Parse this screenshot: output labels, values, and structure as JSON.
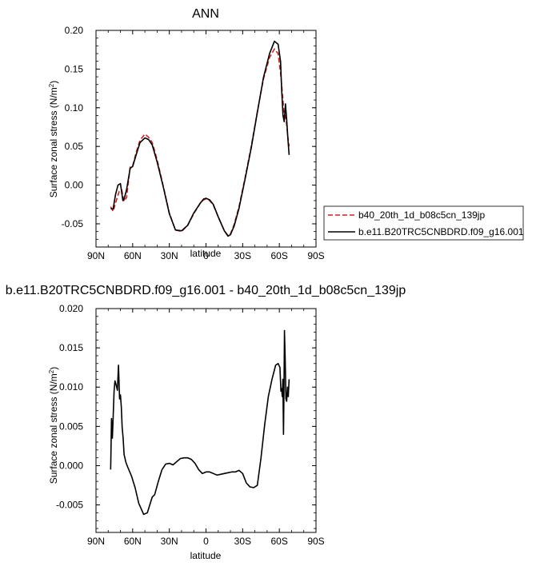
{
  "chart_data": [
    {
      "type": "line",
      "title": "ANN",
      "xlabel": "latitude",
      "ylabel": "Surface zonal stress (N/m²)",
      "ylabel_main": "Surface zonal stress (N/m",
      "ylabel_sup": "2",
      "ylabel_tail": ")",
      "xlim": [
        90,
        -90
      ],
      "ylim": [
        -0.08,
        0.2
      ],
      "x_ticks": [
        {
          "v": 90,
          "label": "90N"
        },
        {
          "v": 60,
          "label": "60N"
        },
        {
          "v": 30,
          "label": "30N"
        },
        {
          "v": 0,
          "label": "0"
        },
        {
          "v": -30,
          "label": "30S"
        },
        {
          "v": -60,
          "label": "60S"
        },
        {
          "v": -90,
          "label": "90S"
        }
      ],
      "y_ticks": [
        {
          "v": 0.2,
          "label": "0.20"
        },
        {
          "v": 0.15,
          "label": "0.15"
        },
        {
          "v": 0.1,
          "label": "0.10"
        },
        {
          "v": 0.05,
          "label": "0.05"
        },
        {
          "v": 0.0,
          "label": "0.00"
        },
        {
          "v": -0.05,
          "label": "-0.05"
        }
      ],
      "legend_position": "right",
      "series": [
        {
          "name": "b40_20th_1d_b08c5cn_139jp",
          "color": "#d42020",
          "dash": "dashed",
          "x": [
            78,
            76,
            73,
            71,
            69,
            67,
            65,
            62,
            60,
            57,
            54,
            50,
            47,
            44,
            40,
            35,
            30,
            25,
            20,
            15,
            10,
            5,
            2,
            0,
            -3,
            -6,
            -10,
            -15,
            -18,
            -20,
            -23,
            -27,
            -32,
            -37,
            -42,
            -47,
            -52,
            -56,
            -59,
            -61,
            -63,
            -64,
            -65,
            -66,
            -67,
            -68
          ],
          "y": [
            -0.028,
            -0.034,
            -0.018,
            -0.008,
            -0.006,
            -0.021,
            -0.016,
            0.024,
            0.025,
            0.043,
            0.058,
            0.066,
            0.062,
            0.055,
            0.033,
            -0.001,
            -0.036,
            -0.058,
            -0.06,
            -0.052,
            -0.037,
            -0.024,
            -0.019,
            -0.018,
            -0.02,
            -0.026,
            -0.041,
            -0.059,
            -0.065,
            -0.063,
            -0.051,
            -0.028,
            0.01,
            0.05,
            0.095,
            0.137,
            0.165,
            0.176,
            0.17,
            0.145,
            0.11,
            0.085,
            0.09,
            0.078,
            0.062,
            0.05
          ]
        },
        {
          "name": "b.e11.B20TRC5CNBDRD.f09_g16.001",
          "color": "#000000",
          "dash": "solid",
          "x": [
            78,
            76,
            74,
            72,
            70,
            68,
            67,
            65,
            62,
            60,
            57,
            54,
            50,
            47,
            44,
            40,
            35,
            30,
            25,
            20,
            15,
            10,
            5,
            2,
            0,
            -3,
            -6,
            -10,
            -15,
            -18,
            -20,
            -23,
            -27,
            -32,
            -37,
            -42,
            -47,
            -52,
            -56,
            -59,
            -61,
            -62,
            -63,
            -64,
            -65,
            -66,
            -67,
            -68
          ],
          "y": [
            -0.03,
            -0.031,
            -0.012,
            0.0,
            0.002,
            -0.02,
            -0.018,
            -0.006,
            0.022,
            0.024,
            0.04,
            0.055,
            0.061,
            0.059,
            0.052,
            0.03,
            -0.002,
            -0.037,
            -0.058,
            -0.059,
            -0.052,
            -0.036,
            -0.024,
            -0.018,
            -0.017,
            -0.019,
            -0.025,
            -0.041,
            -0.059,
            -0.066,
            -0.064,
            -0.053,
            -0.03,
            0.008,
            0.048,
            0.094,
            0.139,
            0.17,
            0.186,
            0.182,
            0.16,
            0.12,
            0.09,
            0.082,
            0.105,
            0.085,
            0.06,
            0.039
          ]
        }
      ]
    },
    {
      "type": "line",
      "title": "b.e11.B20TRC5CNBDRD.f09_g16.001 - b40_20th_1d_b08c5cn_139jp",
      "xlabel": "latitude",
      "ylabel": "Surface zonal stress (N/m²)",
      "ylabel_main": "Surface zonal stress (N/m",
      "ylabel_sup": "2",
      "ylabel_tail": ")",
      "xlim": [
        90,
        -90
      ],
      "ylim": [
        -0.0085,
        0.02
      ],
      "x_ticks": [
        {
          "v": 90,
          "label": "90N"
        },
        {
          "v": 60,
          "label": "60N"
        },
        {
          "v": 30,
          "label": "30N"
        },
        {
          "v": 0,
          "label": "0"
        },
        {
          "v": -30,
          "label": "30S"
        },
        {
          "v": -60,
          "label": "60S"
        },
        {
          "v": -90,
          "label": "90S"
        }
      ],
      "y_ticks": [
        {
          "v": 0.02,
          "label": "0.020"
        },
        {
          "v": 0.015,
          "label": "0.015"
        },
        {
          "v": 0.01,
          "label": "0.010"
        },
        {
          "v": 0.005,
          "label": "0.005"
        },
        {
          "v": 0.0,
          "label": "0.000"
        },
        {
          "v": -0.005,
          "label": "-0.005"
        }
      ],
      "series": [
        {
          "name": "",
          "color": "#000000",
          "dash": "solid",
          "x": [
            78,
            77.3,
            76.6,
            76,
            75.2,
            74.5,
            73.4,
            72.5,
            71.6,
            70.7,
            70,
            69.3,
            68.6,
            67.8,
            67,
            65.5,
            64,
            61,
            58,
            55,
            51,
            48,
            46,
            44,
            42,
            39,
            36,
            33,
            30,
            27,
            24,
            21,
            18,
            15,
            12,
            9,
            6,
            3,
            0,
            -3,
            -6,
            -9,
            -12,
            -15,
            -18,
            -21,
            -24,
            -27,
            -30,
            -33,
            -36,
            -39,
            -42,
            -45,
            -48,
            -51,
            -54,
            -57,
            -59,
            -60.5,
            -61.3,
            -61.9,
            -62.4,
            -62.9,
            -63.4,
            -63.8,
            -64.2,
            -64.8,
            -65.4,
            -66,
            -66.7,
            -67.3,
            -68
          ],
          "y": [
            -0.0005,
            0.006,
            0.0035,
            0.006,
            0.0095,
            0.0108,
            0.0102,
            0.0096,
            0.0128,
            0.0085,
            0.009,
            0.0075,
            0.0049,
            0.0035,
            0.0014,
            0.0004,
            -0.0002,
            -0.0013,
            -0.0028,
            -0.0048,
            -0.0062,
            -0.006,
            -0.005,
            -0.004,
            -0.0037,
            -0.002,
            -0.0005,
            0.0002,
            0.0003,
            0.0001,
            0.0005,
            0.0009,
            0.001,
            0.001,
            0.0008,
            0.0003,
            -0.0005,
            -0.001,
            -0.0008,
            -0.0008,
            -0.001,
            -0.0012,
            -0.0011,
            -0.001,
            -0.0009,
            -0.0008,
            -0.0008,
            -0.0006,
            -0.001,
            -0.0022,
            -0.0027,
            -0.0028,
            -0.0025,
            0.001,
            0.0052,
            0.0088,
            0.011,
            0.0128,
            0.013,
            0.0125,
            0.0095,
            0.0098,
            0.0088,
            0.011,
            0.004,
            0.0095,
            0.0172,
            0.0135,
            0.0085,
            0.0082,
            0.01,
            0.0088,
            0.011
          ]
        }
      ]
    }
  ]
}
